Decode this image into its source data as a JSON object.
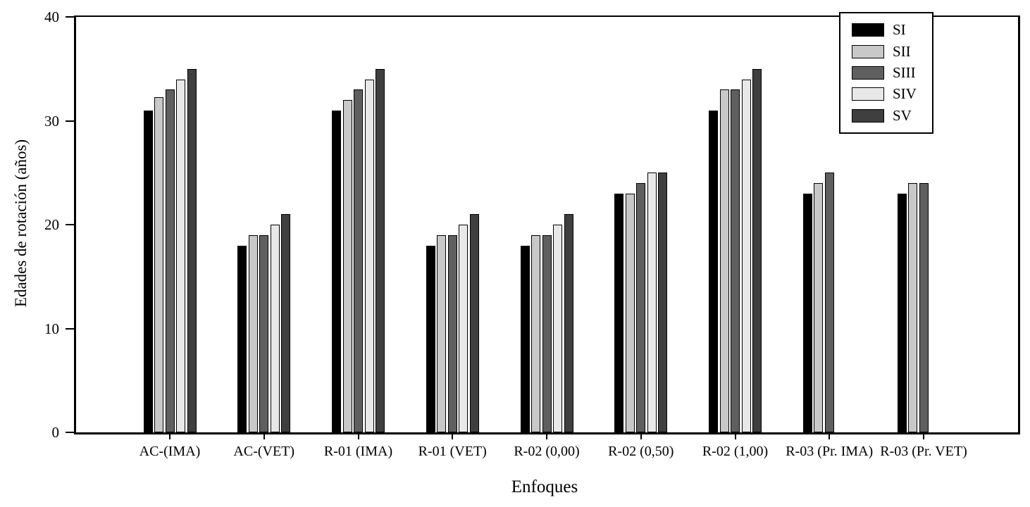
{
  "chart_data": {
    "type": "bar",
    "title": "",
    "xlabel": "Enfoques",
    "ylabel": "Edades de rotación (años)",
    "ylim": [
      0,
      40
    ],
    "yticks": [
      0,
      10,
      20,
      30,
      40
    ],
    "grid": false,
    "legend_position": "top-right",
    "background_color": "#ffffff",
    "bar_outline_color": "#000000",
    "categories": [
      "AC-(IMA)",
      "AC-(VET)",
      "R-01 (IMA)",
      "R-01 (VET)",
      "R-02 (0,00)",
      "R-02 (0,50)",
      "R-02 (1,00)",
      "R-03 (Pr. IMA)",
      "R-03 (Pr. VET)"
    ],
    "series": [
      {
        "name": "SI",
        "color": "#000000",
        "values": [
          31,
          18,
          31,
          18,
          18,
          23,
          31,
          23,
          23
        ]
      },
      {
        "name": "SII",
        "color": "#c8c8c8",
        "values": [
          32.3,
          19,
          32,
          19,
          19,
          23,
          33,
          24,
          24
        ]
      },
      {
        "name": "SIII",
        "color": "#5f5f5f",
        "values": [
          33,
          19,
          33,
          19,
          19,
          24,
          33,
          25,
          24
        ]
      },
      {
        "name": "SIV",
        "color": "#e8e8e8",
        "values": [
          34,
          20,
          34,
          20,
          20,
          25,
          34,
          null,
          null
        ]
      },
      {
        "name": "SV",
        "color": "#3f3f3f",
        "values": [
          35,
          21,
          35,
          21,
          21,
          25,
          35,
          null,
          null
        ]
      }
    ]
  }
}
